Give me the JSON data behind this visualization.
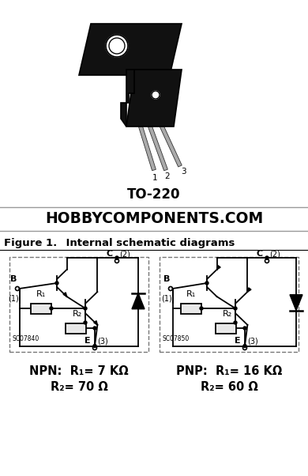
{
  "bg_color": "#ffffff",
  "title_hobbycomponents": "HOBBYCOMPONENTS.COM",
  "package_label": "TO-220",
  "figure_label": "Figure 1.",
  "figure_title": "    Internal schematic diagrams",
  "npn_label": "NPN:",
  "npn_r1": "R₁= 7 KΩ",
  "npn_r2": "R₂= 70 Ω",
  "pnp_label": "PNP:",
  "pnp_r1": "R₁= 16 KΩ",
  "pnp_r2": "R₂= 60 Ω",
  "sc07840": "SC07840",
  "sc07850": "SC07850",
  "dashed_border_color": "#777777",
  "black": "#000000",
  "resistor_fill": "#e8e8e8",
  "pkg_body_color": "#111111",
  "pkg_outline_color": "#000000",
  "pkg_lead_color": "#888888",
  "pkg_tab_color": "#222222"
}
